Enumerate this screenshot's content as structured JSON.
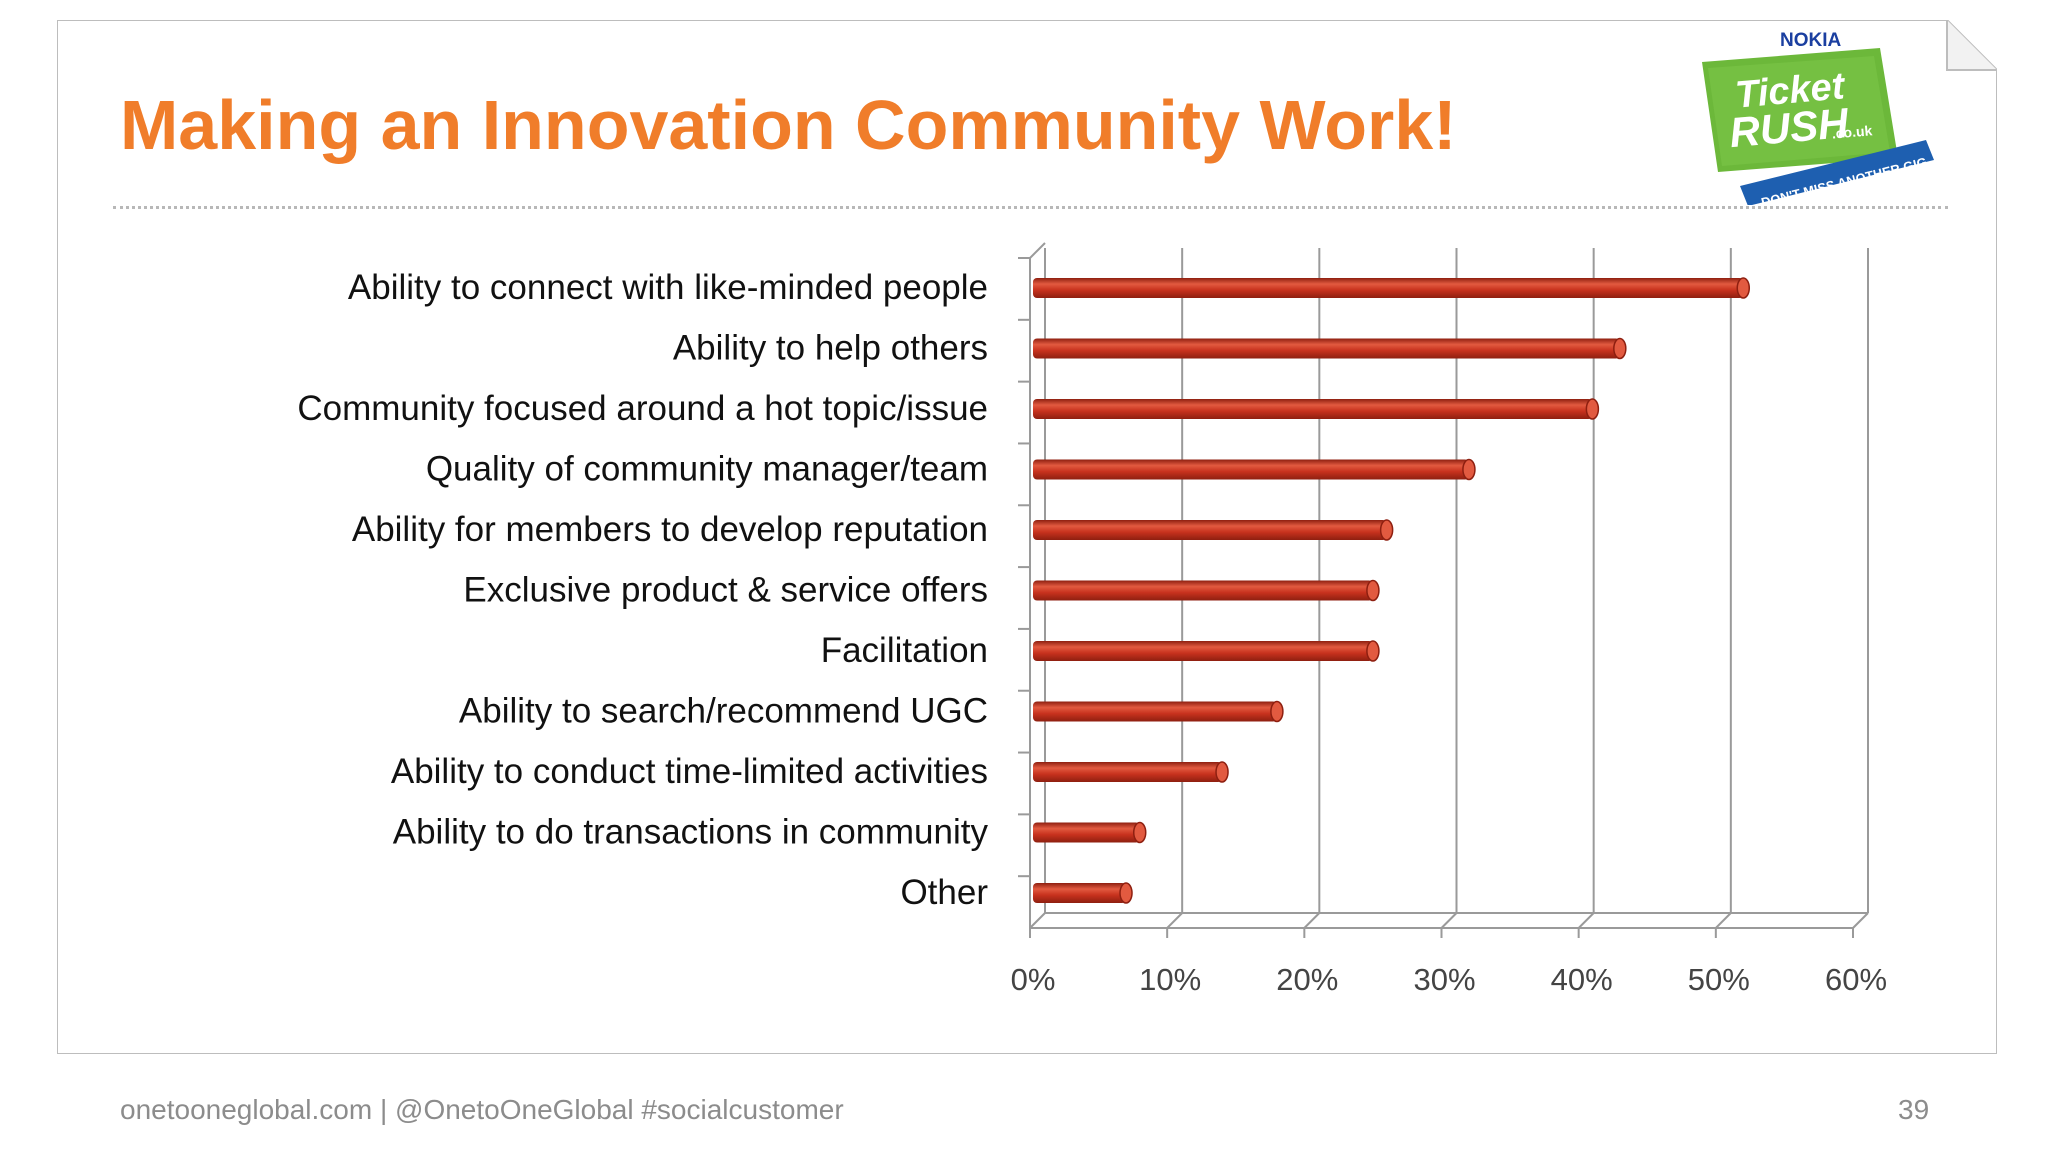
{
  "slide": {
    "title": "Making an Innovation Community Work!",
    "footer": "onetooneglobal.com | @OnetoOneGlobal #socialcustomer",
    "page_number": "39"
  },
  "logo": {
    "brand": "NOKIA",
    "line1": "Ticket",
    "line2": "RUSH",
    "domain": ".co.uk",
    "ribbon": "DON'T MISS ANOTHER GIG",
    "colors": {
      "nokia_blue": "#1b3fa0",
      "green": "#6cb83a",
      "ribbon_blue": "#1e5fb0"
    }
  },
  "colors": {
    "title": "#f07d2a",
    "bar": "#c8321e",
    "bar_highlight": "#e25a40",
    "bar_shadow": "#8e1f10",
    "grid": "#9a9a9a",
    "footer_text": "#8c8c8c"
  },
  "chart_data": {
    "type": "bar",
    "orientation": "horizontal",
    "categories": [
      "Ability to connect with like-minded people",
      "Ability to help others",
      "Community focused around a hot topic/issue",
      "Quality of community manager/team",
      "Ability for members to develop reputation",
      "Exclusive product & service offers",
      "Facilitation",
      "Ability to search/recommend UGC",
      "Ability to conduct time-limited activities",
      "Ability to do transactions in community",
      "Other"
    ],
    "values": [
      52,
      43,
      41,
      32,
      26,
      25,
      25,
      18,
      14,
      8,
      7
    ],
    "unit": "%",
    "xlim": [
      0,
      60
    ],
    "x_ticks": [
      "0%",
      "10%",
      "20%",
      "30%",
      "40%",
      "50%",
      "60%"
    ],
    "grid": true,
    "style": "3d-cylinder"
  }
}
